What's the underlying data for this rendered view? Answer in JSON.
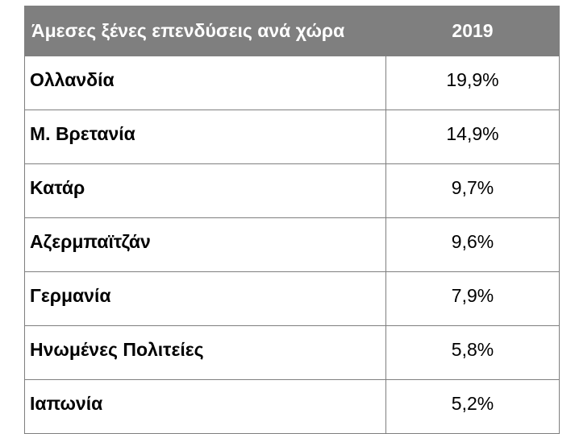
{
  "table": {
    "header": {
      "country": "Άμεσες ξένες επενδύσεις ανά χώρα",
      "year": "2019"
    },
    "rows": [
      {
        "country": "Ολλανδία",
        "value": "19,9%"
      },
      {
        "country": "Μ. Βρετανία",
        "value": "14,9%"
      },
      {
        "country": "Κατάρ",
        "value": "9,7%"
      },
      {
        "country": "Αζερμπαϊτζάν",
        "value": "9,6%"
      },
      {
        "country": "Γερμανία",
        "value": "7,9%"
      },
      {
        "country": "Ηνωμένες Πολιτείες",
        "value": "5,8%"
      },
      {
        "country": "Ιαπωνία",
        "value": "5,2%"
      }
    ]
  }
}
